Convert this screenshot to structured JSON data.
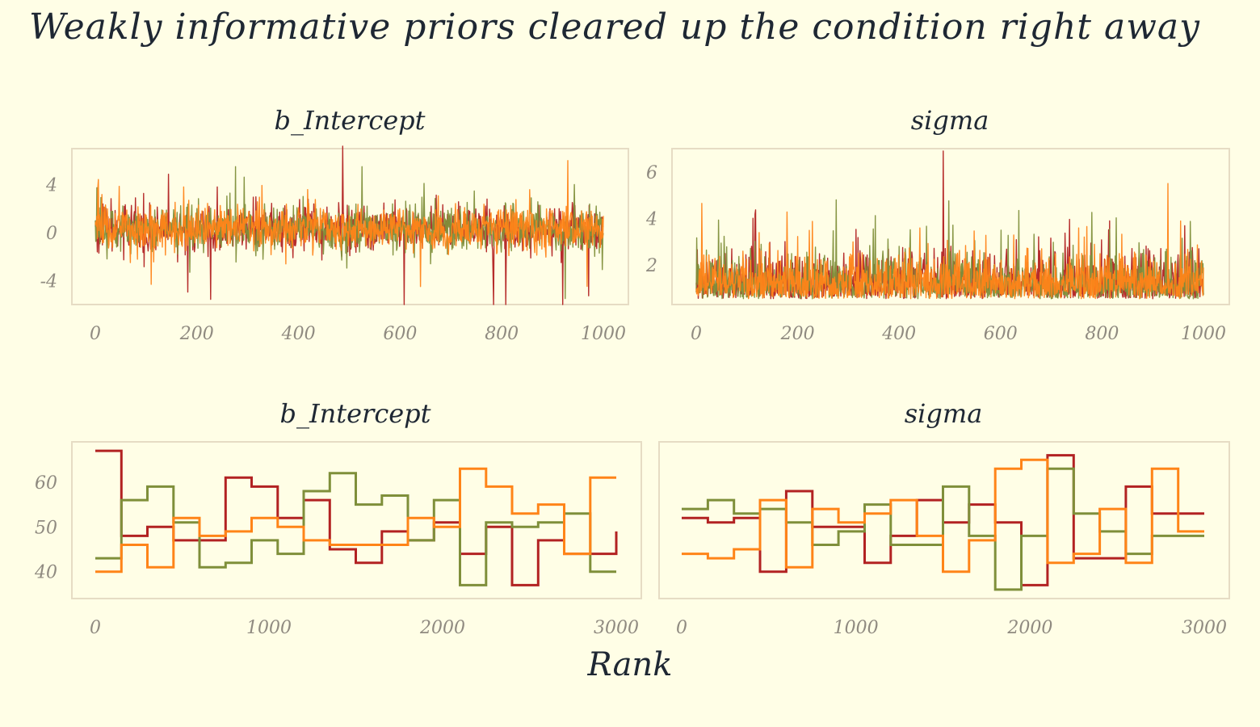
{
  "title": "Weakly informative priors cleared up the condition right away",
  "xlabel": "Rank",
  "colors": {
    "background": "#fffee6",
    "frame": "#e6dcc4",
    "tick_text": "#8f8a80",
    "text": "#1e2733",
    "chain1": "#b22222",
    "chain2": "#7f8f3a",
    "chain3": "#ff8418"
  },
  "chart_data": [
    {
      "type": "line",
      "title": "b_Intercept",
      "xlim": [
        0,
        1000
      ],
      "ylim": [
        -6,
        7
      ],
      "x_ticks": [
        "0",
        "200",
        "400",
        "600",
        "800",
        "1000"
      ],
      "y_ticks": [
        "4",
        "0",
        "-4"
      ],
      "description": "trace plot, 3 chains of 1000 draws",
      "series_summary": [
        {
          "chain": 1,
          "center": 0.3,
          "spread": 1.5,
          "max": 7.2,
          "min": -6.0
        },
        {
          "chain": 2,
          "center": 0.3,
          "spread": 1.5,
          "max": 5.5,
          "min": -5.5
        },
        {
          "chain": 3,
          "center": 0.3,
          "spread": 1.5,
          "max": 6.0,
          "min": -4.5
        }
      ]
    },
    {
      "type": "line",
      "title": "sigma",
      "xlim": [
        0,
        1000
      ],
      "ylim": [
        0.3,
        7
      ],
      "x_ticks": [
        "0",
        "200",
        "400",
        "600",
        "800",
        "1000"
      ],
      "y_ticks": [
        "6",
        "4",
        "2"
      ],
      "description": "trace plot, 3 chains of 1000 draws",
      "series_summary": [
        {
          "chain": 1,
          "center": 1.5,
          "max": 6.9,
          "min": 0.5
        },
        {
          "chain": 2,
          "center": 1.5,
          "max": 4.8,
          "min": 0.5
        },
        {
          "chain": 3,
          "center": 1.5,
          "max": 5.5,
          "min": 0.5
        }
      ]
    },
    {
      "type": "line",
      "title": "b_Intercept",
      "xlim": [
        0,
        3000
      ],
      "ylim": [
        34,
        69
      ],
      "x_ticks": [
        "0",
        "1000",
        "2000",
        "3000"
      ],
      "y_ticks": [
        "60",
        "50",
        "40"
      ],
      "bin_edges": [
        0,
        150,
        300,
        450,
        600,
        750,
        900,
        1050,
        1200,
        1350,
        1500,
        1650,
        1800,
        1950,
        2100,
        2250,
        2400,
        2550,
        2700,
        2850,
        3000
      ],
      "series": [
        {
          "chain": 1,
          "values": [
            67,
            48,
            50,
            47,
            47,
            61,
            59,
            52,
            56,
            45,
            42,
            49,
            47,
            51,
            44,
            50,
            37,
            47,
            44,
            44,
            49
          ]
        },
        {
          "chain": 2,
          "values": [
            43,
            56,
            59,
            51,
            41,
            42,
            47,
            44,
            58,
            62,
            55,
            57,
            47,
            56,
            37,
            51,
            50,
            51,
            53,
            40,
            40
          ]
        },
        {
          "chain": 3,
          "values": [
            40,
            46,
            41,
            52,
            48,
            49,
            52,
            50,
            47,
            46,
            46,
            46,
            52,
            50,
            63,
            59,
            53,
            55,
            44,
            61,
            61
          ]
        }
      ]
    },
    {
      "type": "line",
      "title": "sigma",
      "xlim": [
        0,
        3000
      ],
      "ylim": [
        34,
        69
      ],
      "x_ticks": [
        "0",
        "1000",
        "2000",
        "3000"
      ],
      "y_ticks": [],
      "bin_edges": [
        0,
        150,
        300,
        450,
        600,
        750,
        900,
        1050,
        1200,
        1350,
        1500,
        1650,
        1800,
        1950,
        2100,
        2250,
        2400,
        2550,
        2700,
        2850,
        3000
      ],
      "series": [
        {
          "chain": 1,
          "values": [
            52,
            51,
            52,
            40,
            58,
            50,
            50,
            42,
            48,
            56,
            51,
            55,
            51,
            37,
            66,
            43,
            43,
            59,
            53,
            53,
            53
          ]
        },
        {
          "chain": 2,
          "values": [
            54,
            56,
            53,
            54,
            51,
            46,
            49,
            55,
            46,
            46,
            59,
            48,
            36,
            48,
            63,
            53,
            49,
            44,
            48,
            48,
            48
          ]
        },
        {
          "chain": 3,
          "values": [
            44,
            43,
            45,
            56,
            41,
            54,
            51,
            53,
            56,
            48,
            40,
            47,
            63,
            65,
            42,
            44,
            54,
            42,
            63,
            49,
            49
          ]
        }
      ]
    }
  ]
}
